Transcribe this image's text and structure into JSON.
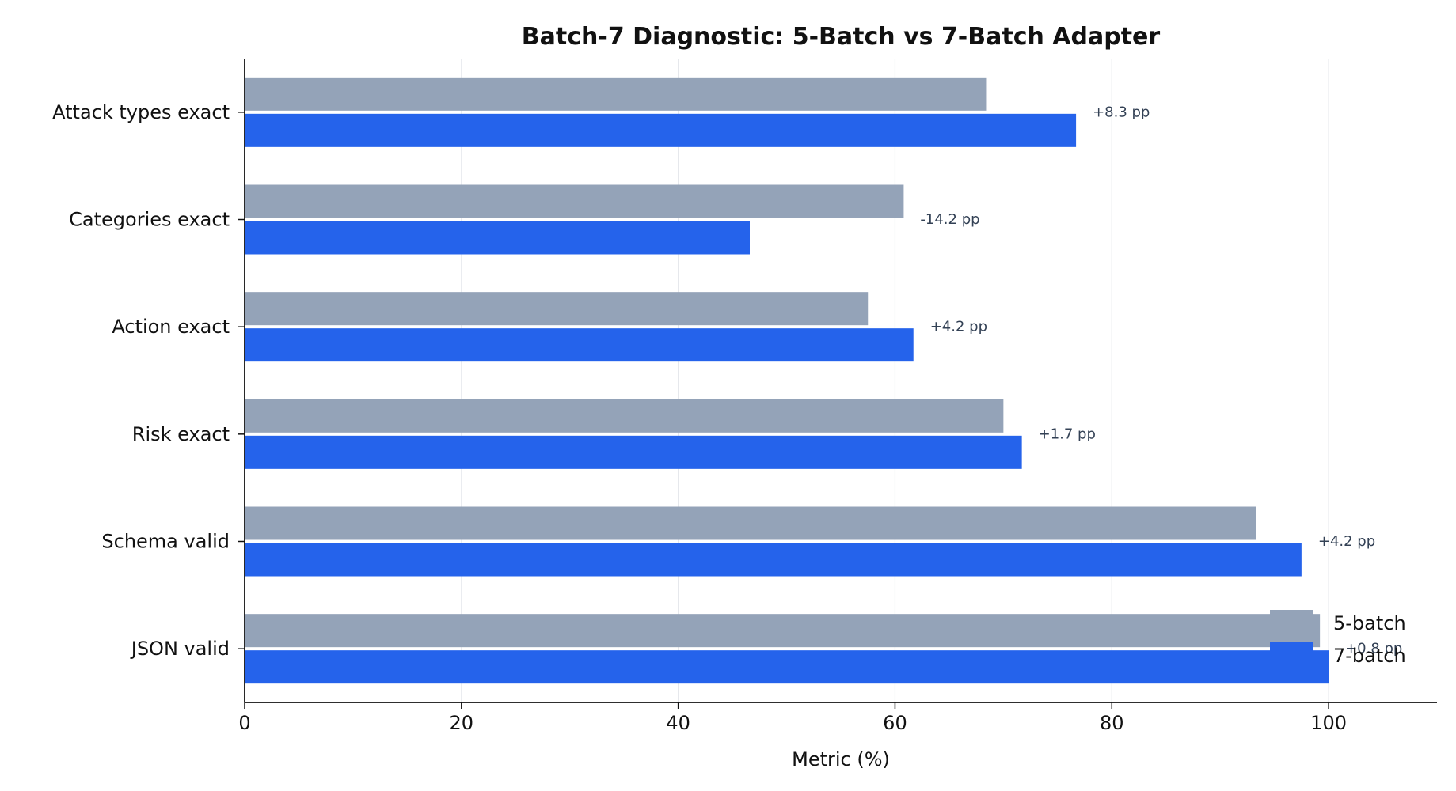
{
  "chart_data": {
    "type": "bar",
    "orientation": "horizontal",
    "title": "Batch-7 Diagnostic: 5-Batch vs 7-Batch Adapter",
    "xlabel": "Metric (%)",
    "ylabel": "",
    "xlim": [
      0,
      110
    ],
    "xticks": [
      0,
      20,
      40,
      60,
      80,
      100
    ],
    "grid": "vertical",
    "legend_position": "lower-right",
    "categories": [
      "Attack types exact",
      "Categories exact",
      "Action exact",
      "Risk exact",
      "Schema valid",
      "JSON valid"
    ],
    "series": [
      {
        "name": "5-batch",
        "color": "#94a3b8",
        "values": [
          68.4,
          60.8,
          57.5,
          70.0,
          93.3,
          99.2
        ]
      },
      {
        "name": "7-batch",
        "color": "#2563eb",
        "values": [
          76.7,
          46.6,
          61.7,
          71.7,
          97.5,
          100.0
        ]
      }
    ],
    "annotations": [
      "+8.3 pp",
      "-14.2 pp",
      "+4.2 pp",
      "+1.7 pp",
      "+4.2 pp",
      "+0.8 pp"
    ]
  }
}
